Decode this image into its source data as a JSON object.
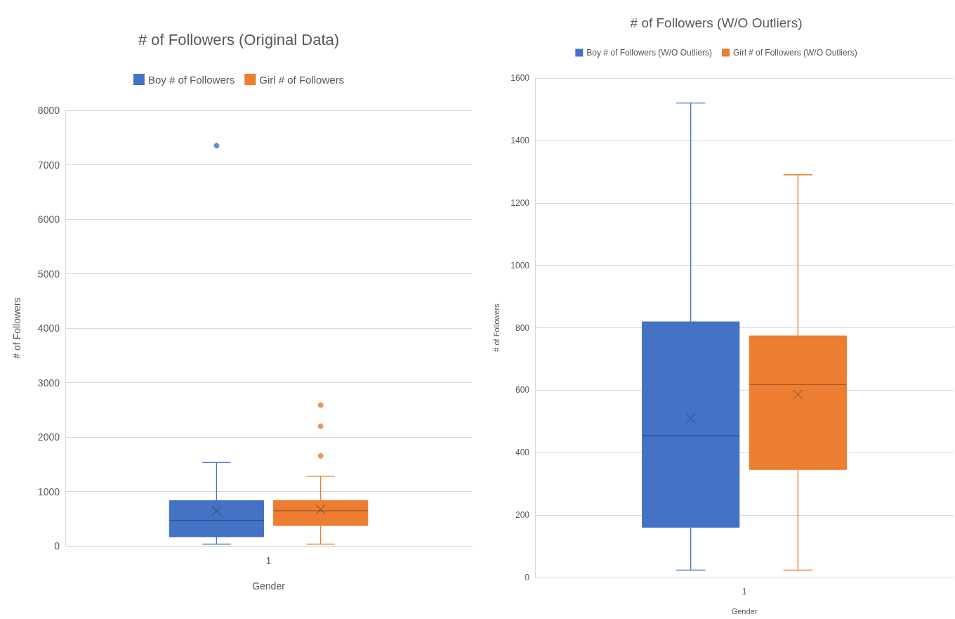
{
  "chart_data": [
    {
      "type": "box",
      "title": "# of Followers (Original Data)",
      "categories": [
        "1"
      ],
      "xlabel": "Gender",
      "ylabel": "# of Followers",
      "ylim": [
        0,
        8000
      ],
      "yticks": [
        0,
        1000,
        2000,
        3000,
        4000,
        5000,
        6000,
        7000,
        8000
      ],
      "grid": "y",
      "legend": "top",
      "series": [
        {
          "name": "Boy # of Followers",
          "color": "#4472c4",
          "boxes": [
            {
              "low": 34,
              "q1": 168,
              "median": 470,
              "q3": 832,
              "high": 1530,
              "mean": 642,
              "outliers": [
                7350
              ]
            }
          ]
        },
        {
          "name": "Girl # of Followers",
          "color": "#ed7d31",
          "boxes": [
            {
              "low": 34,
              "q1": 374,
              "median": 648,
              "q3": 832,
              "high": 1280,
              "mean": 670,
              "outliers": [
                1654,
                2200,
                2587
              ]
            }
          ]
        }
      ]
    },
    {
      "type": "box",
      "title": "# of Followers (W/O Outliers)",
      "categories": [
        "1"
      ],
      "xlabel": "Gender",
      "ylabel": "# of Followers",
      "ylim": [
        0,
        1600
      ],
      "yticks": [
        0,
        200,
        400,
        600,
        800,
        1000,
        1200,
        1400,
        1600
      ],
      "grid": "y",
      "legend": "top",
      "series": [
        {
          "name": "Boy # of Followers (W/O Outliers)",
          "color": "#4472c4",
          "boxes": [
            {
              "low": 24,
              "q1": 161,
              "median": 454,
              "q3": 819,
              "high": 1520,
              "mean": 510
            }
          ]
        },
        {
          "name": "Girl # of Followers (W/O Outliers)",
          "color": "#ed7d31",
          "boxes": [
            {
              "low": 24,
              "q1": 346,
              "median": 618,
              "q3": 774,
              "high": 1290,
              "mean": 586
            }
          ]
        }
      ]
    }
  ]
}
